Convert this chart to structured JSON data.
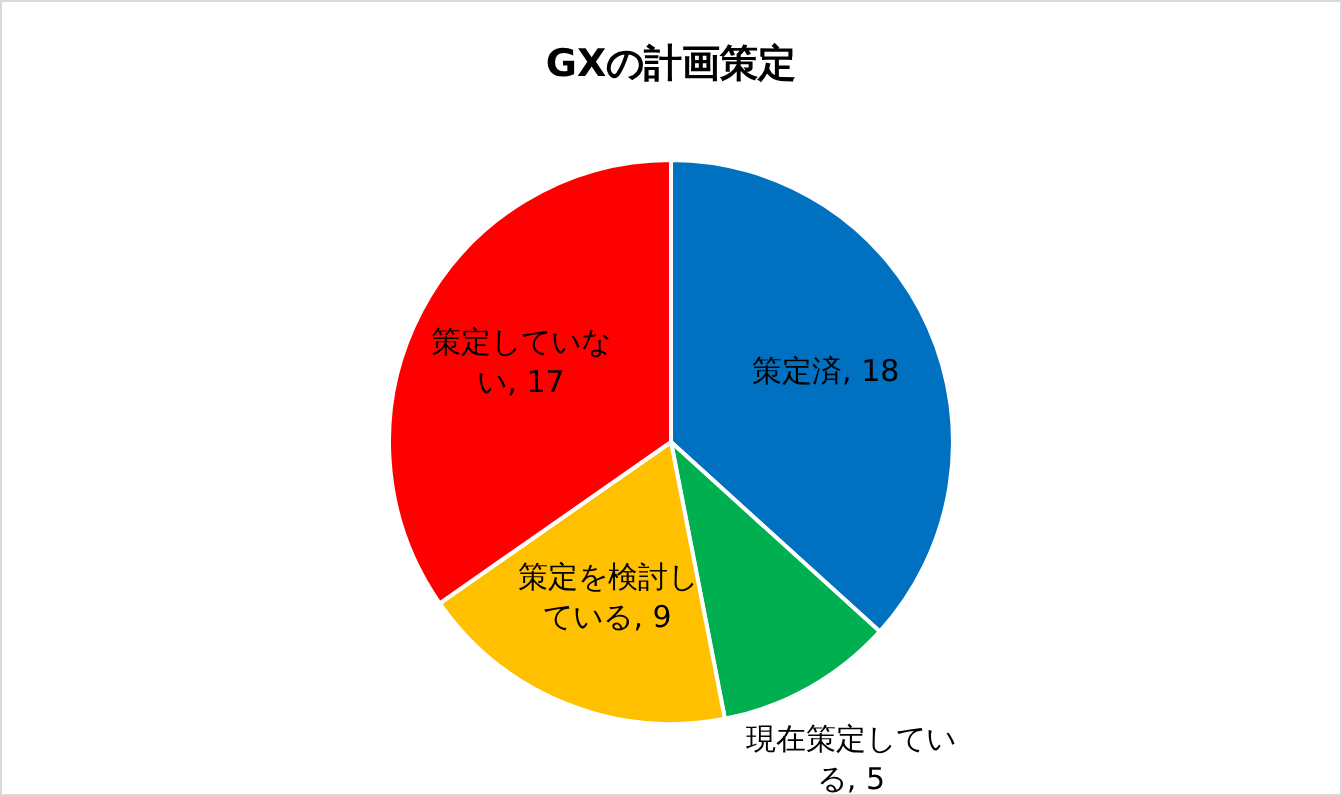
{
  "chart_data": {
    "type": "pie",
    "title": "GXの計画策定",
    "categories": [
      "策定済",
      "現在策定している",
      "策定を検討している",
      "策定していない"
    ],
    "values": [
      18,
      5,
      9,
      17
    ],
    "colors": [
      "#0070c0",
      "#00b050",
      "#ffc000",
      "#ff0000"
    ],
    "value_labels": [
      ", 18",
      ", 5",
      ", 9",
      ", 17"
    ],
    "legend": false
  }
}
